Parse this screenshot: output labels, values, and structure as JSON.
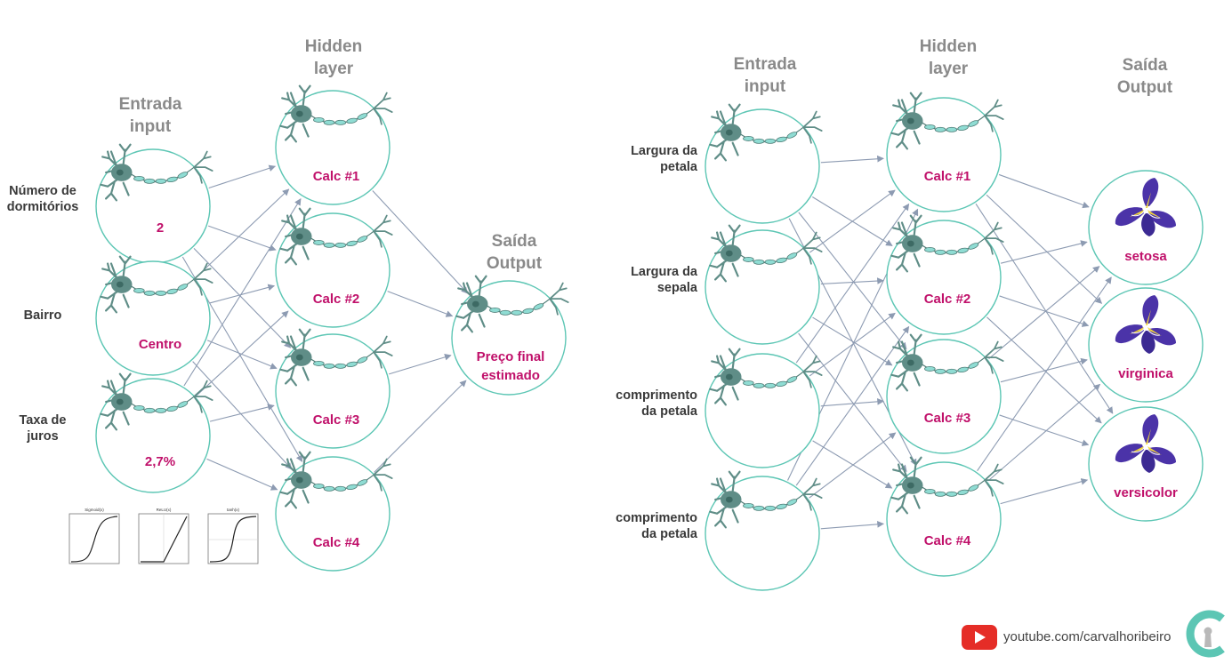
{
  "left_network": {
    "headers": {
      "input": [
        "Entrada",
        "input"
      ],
      "hidden": [
        "Hidden",
        "layer"
      ],
      "output": [
        "Saída",
        "Output"
      ]
    },
    "inputs": [
      {
        "label": [
          "Número de",
          "dormitórios"
        ],
        "value": "2"
      },
      {
        "label": [
          "Bairro"
        ],
        "value": "Centro"
      },
      {
        "label": [
          "Taxa de",
          "juros"
        ],
        "value": "2,7%"
      }
    ],
    "hidden": [
      "Calc #1",
      "Calc #2",
      "Calc #3",
      "Calc #4"
    ],
    "output": [
      "Preço final",
      "estimado"
    ],
    "activation_plots": [
      "Sigmoid(x)",
      "ReLU(x)",
      "tanh(x)"
    ]
  },
  "right_network": {
    "headers": {
      "input": [
        "Entrada",
        "input"
      ],
      "hidden": [
        "Hidden",
        "layer"
      ],
      "output": [
        "Saída",
        "Output"
      ]
    },
    "inputs": [
      {
        "label": [
          "Largura da",
          "petala"
        ]
      },
      {
        "label": [
          "Largura da",
          "sepala"
        ]
      },
      {
        "label": [
          "comprimento",
          "da petala"
        ]
      },
      {
        "label": [
          "comprimento",
          "da petala"
        ]
      }
    ],
    "hidden": [
      "Calc #1",
      "Calc #2",
      "Calc #3",
      "Calc #4"
    ],
    "outputs": [
      "setosa",
      "virginica",
      "versicolor"
    ]
  },
  "branding": {
    "channel": "youtube.com/carvalhoribeiro",
    "icons": [
      "youtube-icon",
      "logo-c-keyhole"
    ]
  },
  "colors": {
    "value_text": "#c0106a",
    "node_stroke": "#5cc6b4",
    "edge": "#8d9bb2",
    "neuron_body": "#5f8d87",
    "axon": "#8fdcd3",
    "header": "#8a8a8a",
    "iris_petal": "#4b33a8",
    "iris_center": "#f2d63a"
  }
}
